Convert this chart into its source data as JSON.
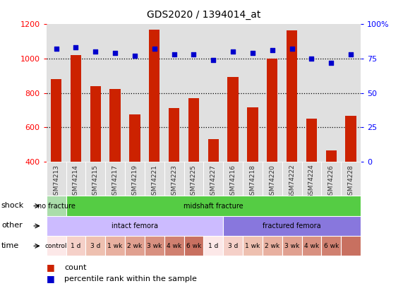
{
  "title": "GDS2020 / 1394014_at",
  "samples": [
    "GSM74213",
    "GSM74214",
    "GSM74215",
    "GSM74217",
    "GSM74219",
    "GSM74221",
    "GSM74223",
    "GSM74225",
    "GSM74227",
    "GSM74216",
    "GSM74218",
    "GSM74220",
    "GSM74222",
    "GSM74224",
    "GSM74226",
    "GSM74228"
  ],
  "counts": [
    880,
    1020,
    840,
    825,
    675,
    1170,
    710,
    770,
    530,
    895,
    715,
    1000,
    1165,
    650,
    465,
    665
  ],
  "percentiles": [
    82,
    83,
    80,
    79,
    77,
    82,
    78,
    78,
    74,
    80,
    79,
    81,
    82,
    75,
    72,
    78
  ],
  "ylim_left": [
    400,
    1200
  ],
  "ylim_right": [
    0,
    100
  ],
  "bar_color": "#cc2200",
  "dot_color": "#0000cc",
  "bg_color": "#e0e0e0",
  "dotted_lines": [
    1000,
    800,
    600
  ],
  "shock_segs": [
    {
      "text": "no fracture",
      "start": 0,
      "end": 1,
      "color": "#aaddaa"
    },
    {
      "text": "midshaft fracture",
      "start": 1,
      "end": 16,
      "color": "#55cc44"
    }
  ],
  "other_segs": [
    {
      "text": "intact femora",
      "start": 0,
      "end": 9,
      "color": "#ccbbff"
    },
    {
      "text": "fractured femora",
      "start": 9,
      "end": 16,
      "color": "#8877dd"
    }
  ],
  "time_segs": [
    {
      "text": "control",
      "start": 0,
      "end": 1,
      "color": "#fce8e8"
    },
    {
      "text": "1 d",
      "start": 1,
      "end": 2,
      "color": "#f5d0c8"
    },
    {
      "text": "3 d",
      "start": 2,
      "end": 3,
      "color": "#eec0b0"
    },
    {
      "text": "1 wk",
      "start": 3,
      "end": 4,
      "color": "#e8b0a0"
    },
    {
      "text": "2 wk",
      "start": 4,
      "end": 5,
      "color": "#e0a090"
    },
    {
      "text": "3 wk",
      "start": 5,
      "end": 6,
      "color": "#d89080"
    },
    {
      "text": "4 wk",
      "start": 6,
      "end": 7,
      "color": "#d08070"
    },
    {
      "text": "6 wk",
      "start": 7,
      "end": 8,
      "color": "#c87060"
    },
    {
      "text": "1 d",
      "start": 8,
      "end": 9,
      "color": "#fce8e8"
    },
    {
      "text": "3 d",
      "start": 9,
      "end": 10,
      "color": "#f5d0c8"
    },
    {
      "text": "1 wk",
      "start": 10,
      "end": 11,
      "color": "#eec0b0"
    },
    {
      "text": "2 wk",
      "start": 11,
      "end": 12,
      "color": "#e8b0a0"
    },
    {
      "text": "3 wk",
      "start": 12,
      "end": 13,
      "color": "#e0a090"
    },
    {
      "text": "4 wk",
      "start": 13,
      "end": 14,
      "color": "#d89080"
    },
    {
      "text": "6 wk",
      "start": 14,
      "end": 15,
      "color": "#d08070"
    },
    {
      "text": "",
      "start": 15,
      "end": 16,
      "color": "#c87060"
    }
  ],
  "row_labels": [
    "shock",
    "other",
    "time"
  ],
  "legend_count_color": "#cc2200",
  "legend_dot_color": "#0000cc"
}
